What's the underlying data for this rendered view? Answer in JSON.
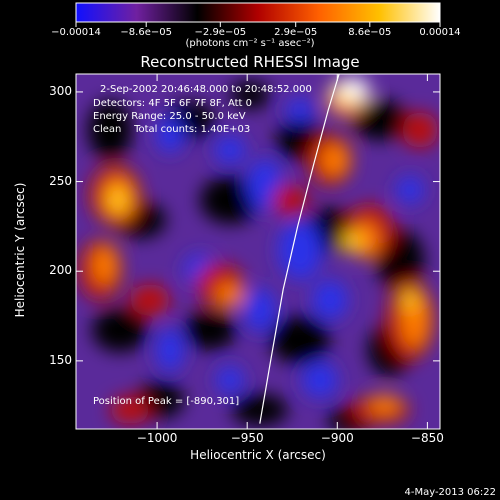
{
  "chart_data": {
    "type": "heatmap",
    "title": "Reconstructed RHESSI Image",
    "xlabel": "Heliocentric X (arcsec)",
    "ylabel": "Heliocentric Y (arcsec)",
    "xlim": [
      -1045,
      -843
    ],
    "ylim": [
      112,
      310
    ],
    "xticks": [
      {
        "value": -1000,
        "label": "−1000"
      },
      {
        "value": -950,
        "label": "−950"
      },
      {
        "value": -900,
        "label": "−900"
      },
      {
        "value": -850,
        "label": "−850"
      }
    ],
    "yticks": [
      {
        "value": 150,
        "label": "150"
      },
      {
        "value": 200,
        "label": "200"
      },
      {
        "value": 250,
        "label": "250"
      },
      {
        "value": 300,
        "label": "300"
      }
    ],
    "colorbar": {
      "range": [
        -0.00014,
        0.00014
      ],
      "ticks": [
        {
          "value": -0.00014,
          "label": "−0.00014"
        },
        {
          "value": -8.6e-05,
          "label": "−8.6e−05"
        },
        {
          "value": -2.9e-05,
          "label": "−2.9e−05"
        },
        {
          "value": 2.9e-05,
          "label": "2.9e−05"
        },
        {
          "value": 8.6e-05,
          "label": "8.6e−05"
        },
        {
          "value": 0.00014,
          "label": "0.00014"
        }
      ],
      "units_label": "(photons cm⁻² s⁻¹ asec⁻²)",
      "colors": [
        "#1010ff",
        "#7020a0",
        "#000000",
        "#b00000",
        "#ff6000",
        "#ffc000",
        "#ffffff"
      ]
    },
    "annotations": {
      "time": "2-Sep-2002 20:46:48.000 to 20:48:52.000",
      "detectors": "Detectors: 4F 5F 6F 7F 8F, Att 0",
      "energy": "Energy Range: 25.0 - 50.0 keV",
      "method": "Clean    Total counts: 1.40E+03",
      "peak": "Position of Peak = [-890,301]"
    },
    "peak": {
      "x": -890,
      "y": 301
    },
    "limb_curve": [
      {
        "x": -943,
        "y": 115
      },
      {
        "x": -937,
        "y": 150
      },
      {
        "x": -930,
        "y": 190
      },
      {
        "x": -922,
        "y": 225
      },
      {
        "x": -913,
        "y": 260
      },
      {
        "x": -905,
        "y": 290
      },
      {
        "x": -899,
        "y": 310
      }
    ]
  },
  "footer": {
    "date": "4-May-2013 06:22"
  }
}
